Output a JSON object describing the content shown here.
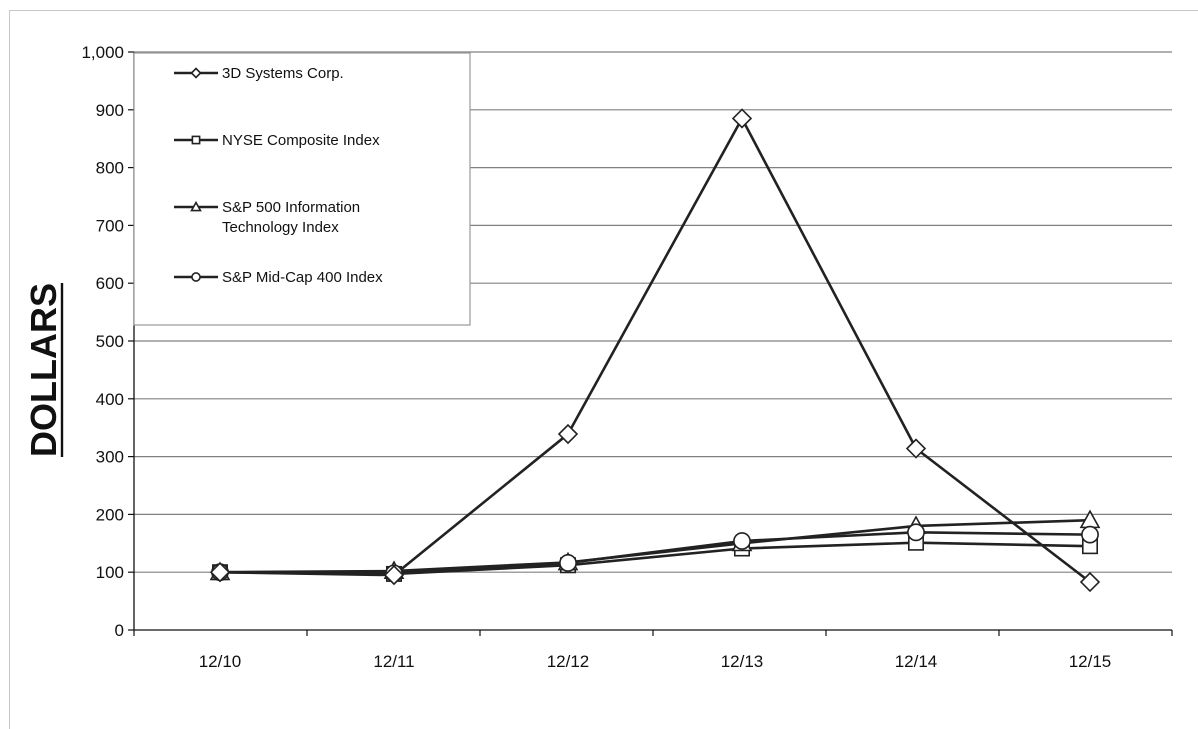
{
  "chart_data": {
    "type": "line",
    "title": "",
    "xlabel": "",
    "ylabel": "DOLLARS",
    "categories": [
      "12/10",
      "12/11",
      "12/12",
      "12/13",
      "12/14",
      "12/15"
    ],
    "ylim": [
      0,
      1000
    ],
    "yticks": [
      "0",
      "100",
      "200",
      "300",
      "400",
      "500",
      "600",
      "700",
      "800",
      "900",
      "1,000"
    ],
    "grid": "horizontal",
    "legend_position": "top-left",
    "series": [
      {
        "name": "3D Systems Corp.",
        "marker": "diamond",
        "values": [
          100,
          95,
          339,
          885,
          314,
          83
        ]
      },
      {
        "name": "NYSE Composite Index",
        "marker": "square",
        "values": [
          100,
          97,
          112,
          141,
          151,
          145
        ]
      },
      {
        "name": "S&P 500 Information Technology Index",
        "label_lines": [
          "S&P 500 Information",
          "Technology Index"
        ],
        "marker": "triangle",
        "values": [
          100,
          102,
          117,
          150,
          180,
          190
        ]
      },
      {
        "name": "S&P Mid-Cap 400 Index",
        "marker": "circle",
        "values": [
          100,
          98,
          116,
          154,
          169,
          165
        ]
      }
    ],
    "line_color": "#222222",
    "grid_color": "#808080"
  }
}
